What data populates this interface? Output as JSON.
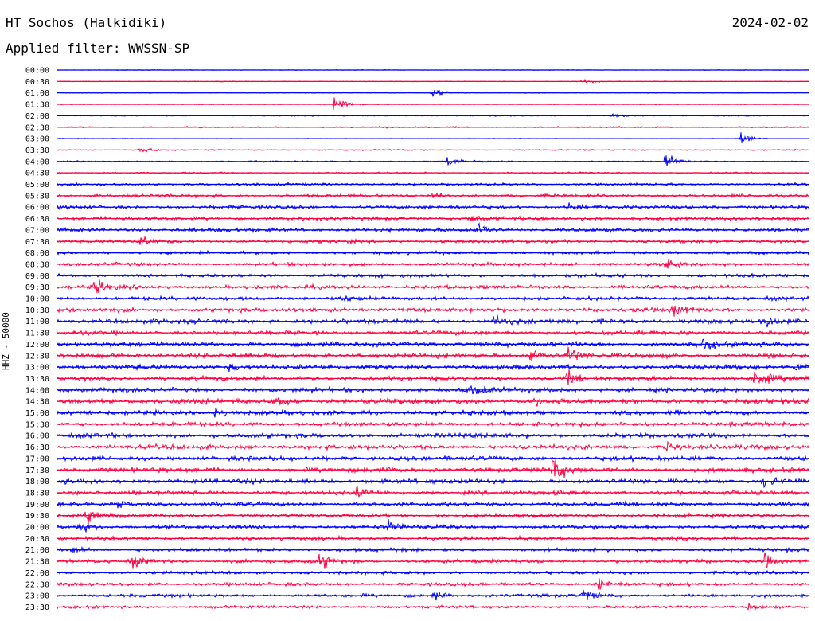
{
  "header": {
    "station": "HT Sochos (Halkidiki)",
    "date": "2024-02-02",
    "filter": "Applied filter: WWSSN-SP"
  },
  "chart_data": {
    "type": "line",
    "title": "HT Sochos (Halkidiki)",
    "subtitle": "Applied filter: WWSSN-SP",
    "ylabel": "HHZ - 50000",
    "row_labels": [
      "00:00",
      "00:30",
      "01:00",
      "01:30",
      "02:00",
      "02:30",
      "03:00",
      "03:30",
      "04:00",
      "04:30",
      "05:00",
      "05:30",
      "06:00",
      "06:30",
      "07:00",
      "07:30",
      "08:00",
      "08:30",
      "09:00",
      "09:30",
      "10:00",
      "10:30",
      "11:00",
      "11:30",
      "12:00",
      "12:30",
      "13:00",
      "13:30",
      "14:00",
      "14:30",
      "15:00",
      "15:30",
      "16:00",
      "16:30",
      "17:00",
      "17:30",
      "18:00",
      "18:30",
      "19:00",
      "19:30",
      "20:00",
      "20:30",
      "21:00",
      "21:30",
      "22:00",
      "22:30",
      "23:00",
      "23:30"
    ],
    "colors": [
      "#0000ff",
      "#ff0040"
    ],
    "noise_level": [
      0.3,
      0.3,
      0.3,
      0.3,
      0.4,
      0.6,
      0.3,
      0.5,
      0.6,
      0.7,
      1.1,
      1.3,
      1.5,
      1.6,
      1.6,
      1.4,
      1.4,
      1.4,
      1.5,
      1.6,
      1.6,
      1.8,
      2.0,
      1.8,
      2.0,
      2.0,
      2.0,
      1.9,
      2.0,
      2.2,
      2.0,
      1.8,
      2.0,
      1.9,
      2.0,
      2.0,
      2.0,
      1.8,
      1.8,
      1.6,
      1.7,
      1.5,
      1.5,
      1.5,
      1.4,
      1.4,
      1.4,
      1.2
    ],
    "events": [
      {
        "row": 1,
        "x": 0.7,
        "amp": 3
      },
      {
        "row": 2,
        "x": 0.5,
        "amp": 5
      },
      {
        "row": 3,
        "x": 0.37,
        "amp": 12
      },
      {
        "row": 4,
        "x": 0.74,
        "amp": 2
      },
      {
        "row": 6,
        "x": 0.91,
        "amp": 5
      },
      {
        "row": 7,
        "x": 0.11,
        "amp": 4
      },
      {
        "row": 8,
        "x": 0.52,
        "amp": 6
      },
      {
        "row": 8,
        "x": 0.81,
        "amp": 9
      },
      {
        "row": 11,
        "x": 0.5,
        "amp": 4
      },
      {
        "row": 12,
        "x": 0.68,
        "amp": 4
      },
      {
        "row": 13,
        "x": 0.55,
        "amp": 4
      },
      {
        "row": 14,
        "x": 0.56,
        "amp": 7
      },
      {
        "row": 15,
        "x": 0.11,
        "amp": 5
      },
      {
        "row": 17,
        "x": 0.81,
        "amp": 7
      },
      {
        "row": 19,
        "x": 0.05,
        "amp": 7
      },
      {
        "row": 20,
        "x": 0.38,
        "amp": 4
      },
      {
        "row": 21,
        "x": 0.82,
        "amp": 8
      },
      {
        "row": 22,
        "x": 0.58,
        "amp": 6
      },
      {
        "row": 22,
        "x": 0.94,
        "amp": 6
      },
      {
        "row": 24,
        "x": 0.86,
        "amp": 6
      },
      {
        "row": 25,
        "x": 0.63,
        "amp": 8
      },
      {
        "row": 25,
        "x": 0.68,
        "amp": 9
      },
      {
        "row": 26,
        "x": 0.23,
        "amp": 5
      },
      {
        "row": 26,
        "x": 0.98,
        "amp": 5
      },
      {
        "row": 27,
        "x": 0.68,
        "amp": 6
      },
      {
        "row": 27,
        "x": 0.93,
        "amp": 10
      },
      {
        "row": 28,
        "x": 0.55,
        "amp": 5
      },
      {
        "row": 29,
        "x": 0.29,
        "amp": 7
      },
      {
        "row": 29,
        "x": 0.63,
        "amp": 5
      },
      {
        "row": 30,
        "x": 0.21,
        "amp": 5
      },
      {
        "row": 33,
        "x": 0.81,
        "amp": 5
      },
      {
        "row": 35,
        "x": 0.66,
        "amp": 14
      },
      {
        "row": 36,
        "x": 0.94,
        "amp": 5
      },
      {
        "row": 37,
        "x": 0.4,
        "amp": 5
      },
      {
        "row": 38,
        "x": 0.08,
        "amp": 5
      },
      {
        "row": 39,
        "x": 0.04,
        "amp": 7
      },
      {
        "row": 40,
        "x": 0.03,
        "amp": 6
      },
      {
        "row": 40,
        "x": 0.44,
        "amp": 6
      },
      {
        "row": 42,
        "x": 0.02,
        "amp": 4
      },
      {
        "row": 43,
        "x": 0.1,
        "amp": 6
      },
      {
        "row": 43,
        "x": 0.35,
        "amp": 9
      },
      {
        "row": 43,
        "x": 0.94,
        "amp": 9
      },
      {
        "row": 45,
        "x": 0.72,
        "amp": 7
      },
      {
        "row": 46,
        "x": 0.5,
        "amp": 5
      },
      {
        "row": 46,
        "x": 0.7,
        "amp": 7
      },
      {
        "row": 47,
        "x": 0.92,
        "amp": 4
      }
    ]
  }
}
